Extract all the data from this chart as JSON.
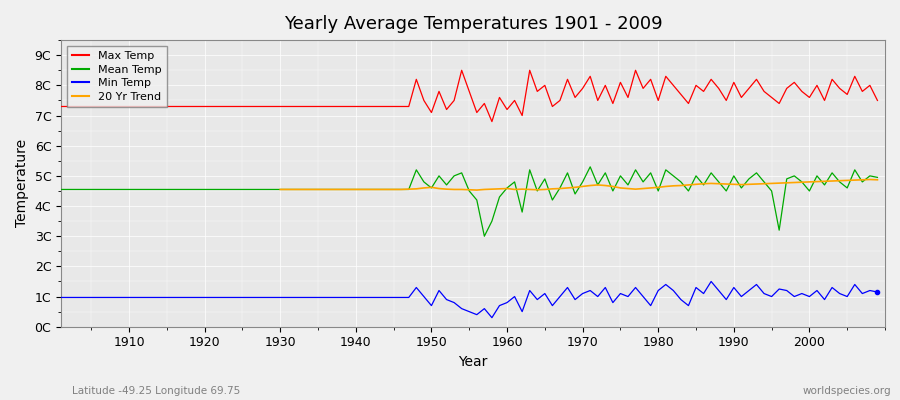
{
  "title": "Yearly Average Temperatures 1901 - 2009",
  "xlabel": "Year",
  "ylabel": "Temperature",
  "bottom_left": "Latitude -49.25 Longitude 69.75",
  "bottom_right": "worldspecies.org",
  "ylim": [
    0,
    9.5
  ],
  "yticks": [
    0,
    1,
    2,
    3,
    4,
    5,
    6,
    7,
    8,
    9
  ],
  "ytick_labels": [
    "0C",
    "1C",
    "2C",
    "3C",
    "4C",
    "5C",
    "6C",
    "7C",
    "8C",
    "9C"
  ],
  "xlim": [
    1901,
    2010
  ],
  "colors": {
    "max": "#ff0000",
    "mean": "#00aa00",
    "min": "#0000ff",
    "trend": "#ffa500",
    "background": "#f0f0f0",
    "plot_bg": "#e8e8e8"
  },
  "year_start": 1901,
  "year_end": 2009,
  "flat_end": 1947,
  "flat_max": 7.3,
  "flat_mean": 4.55,
  "flat_min": 0.97,
  "max_temps": [
    7.3,
    7.3,
    7.3,
    7.3,
    7.3,
    7.3,
    7.3,
    7.3,
    7.3,
    7.3,
    7.3,
    7.3,
    7.3,
    7.3,
    7.3,
    7.3,
    7.3,
    7.3,
    7.3,
    7.3,
    7.3,
    7.3,
    7.3,
    7.3,
    7.3,
    7.3,
    7.3,
    7.3,
    7.3,
    7.3,
    7.3,
    7.3,
    7.3,
    7.3,
    7.3,
    7.3,
    7.3,
    7.3,
    7.3,
    7.3,
    7.3,
    7.3,
    7.3,
    7.3,
    7.3,
    7.3,
    7.3,
    8.2,
    7.5,
    7.1,
    7.8,
    7.2,
    7.5,
    8.5,
    7.8,
    7.1,
    7.4,
    6.8,
    7.6,
    7.2,
    7.5,
    7.0,
    8.5,
    7.8,
    8.0,
    7.3,
    7.5,
    8.2,
    7.6,
    7.9,
    8.3,
    7.5,
    8.0,
    7.4,
    8.1,
    7.6,
    8.5,
    7.9,
    8.2,
    7.5,
    8.3,
    8.0,
    7.7,
    7.4,
    8.0,
    7.8,
    8.2,
    7.9,
    7.5,
    8.1,
    7.6,
    7.9,
    8.2,
    7.8,
    7.6,
    7.4,
    7.9,
    8.1,
    7.8,
    7.6,
    8.0,
    7.5,
    8.2,
    7.9,
    7.7,
    8.3,
    7.8,
    8.0,
    7.5
  ],
  "mean_temps": [
    4.55,
    4.55,
    4.55,
    4.55,
    4.55,
    4.55,
    4.55,
    4.55,
    4.55,
    4.55,
    4.55,
    4.55,
    4.55,
    4.55,
    4.55,
    4.55,
    4.55,
    4.55,
    4.55,
    4.55,
    4.55,
    4.55,
    4.55,
    4.55,
    4.55,
    4.55,
    4.55,
    4.55,
    4.55,
    4.55,
    4.55,
    4.55,
    4.55,
    4.55,
    4.55,
    4.55,
    4.55,
    4.55,
    4.55,
    4.55,
    4.55,
    4.55,
    4.55,
    4.55,
    4.55,
    4.55,
    4.55,
    5.2,
    4.8,
    4.6,
    5.0,
    4.7,
    5.0,
    5.1,
    4.5,
    4.2,
    3.0,
    3.5,
    4.3,
    4.6,
    4.8,
    3.8,
    5.2,
    4.5,
    4.9,
    4.2,
    4.6,
    5.1,
    4.4,
    4.8,
    5.3,
    4.7,
    5.1,
    4.5,
    5.0,
    4.7,
    5.2,
    4.8,
    5.1,
    4.5,
    5.2,
    5.0,
    4.8,
    4.5,
    5.0,
    4.7,
    5.1,
    4.8,
    4.5,
    5.0,
    4.6,
    4.9,
    5.1,
    4.8,
    4.5,
    3.2,
    4.9,
    5.0,
    4.8,
    4.5,
    5.0,
    4.7,
    5.1,
    4.8,
    4.6,
    5.2,
    4.8,
    5.0,
    4.95
  ],
  "min_temps": [
    0.97,
    0.97,
    0.97,
    0.97,
    0.97,
    0.97,
    0.97,
    0.97,
    0.97,
    0.97,
    0.97,
    0.97,
    0.97,
    0.97,
    0.97,
    0.97,
    0.97,
    0.97,
    0.97,
    0.97,
    0.97,
    0.97,
    0.97,
    0.97,
    0.97,
    0.97,
    0.97,
    0.97,
    0.97,
    0.97,
    0.97,
    0.97,
    0.97,
    0.97,
    0.97,
    0.97,
    0.97,
    0.97,
    0.97,
    0.97,
    0.97,
    0.97,
    0.97,
    0.97,
    0.97,
    0.97,
    0.97,
    1.3,
    1.0,
    0.7,
    1.2,
    0.9,
    0.8,
    0.6,
    0.5,
    0.4,
    0.6,
    0.3,
    0.7,
    0.8,
    1.0,
    0.5,
    1.2,
    0.9,
    1.1,
    0.7,
    1.0,
    1.3,
    0.9,
    1.1,
    1.2,
    1.0,
    1.3,
    0.8,
    1.1,
    1.0,
    1.3,
    1.0,
    0.7,
    1.2,
    1.4,
    1.2,
    0.9,
    0.7,
    1.3,
    1.1,
    1.5,
    1.2,
    0.9,
    1.3,
    1.0,
    1.2,
    1.4,
    1.1,
    1.0,
    1.25,
    1.2,
    1.0,
    1.1,
    1.0,
    1.2,
    0.9,
    1.3,
    1.1,
    1.0,
    1.4,
    1.1,
    1.2,
    1.15
  ],
  "trend_start_year": 1930,
  "trend_data": [
    4.55,
    4.55,
    4.55,
    4.55,
    4.55,
    4.55,
    4.55,
    4.55,
    4.55,
    4.55,
    4.55,
    4.55,
    4.55,
    4.55,
    4.55,
    4.55,
    4.55,
    4.56,
    4.57,
    4.6,
    4.62,
    4.58,
    4.56,
    4.55,
    4.55,
    4.54,
    4.53,
    4.55,
    4.56,
    4.57,
    4.58,
    4.55,
    4.56,
    4.55,
    4.54,
    4.55,
    4.57,
    4.58,
    4.6,
    4.62,
    4.65,
    4.68,
    4.7,
    4.68,
    4.65,
    4.6,
    4.58,
    4.56,
    4.58,
    4.6,
    4.62,
    4.65,
    4.67,
    4.68,
    4.7,
    4.72,
    4.74,
    4.75,
    4.74,
    4.73,
    4.72,
    4.71,
    4.72,
    4.73,
    4.74,
    4.75,
    4.76,
    4.77,
    4.78,
    4.79,
    4.8,
    4.81,
    4.82,
    4.83,
    4.84,
    4.85,
    4.86,
    4.87,
    4.88,
    4.87
  ]
}
